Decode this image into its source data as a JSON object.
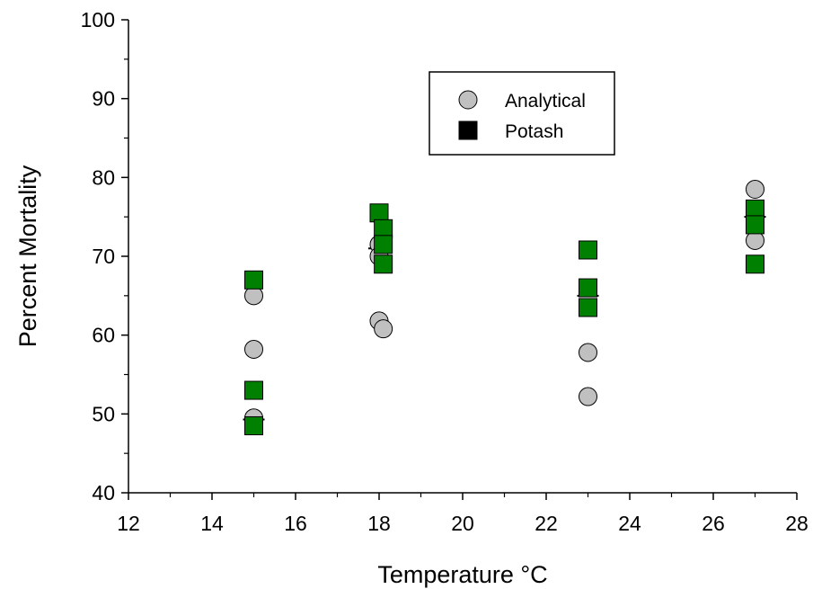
{
  "chart_data": {
    "type": "scatter",
    "title": "",
    "xlabel": "Temperature °C",
    "ylabel": "Percent Mortality",
    "xlim": [
      12,
      28
    ],
    "ylim": [
      40,
      100
    ],
    "xticks": [
      12,
      14,
      16,
      18,
      20,
      22,
      24,
      26,
      28
    ],
    "yticks": [
      40,
      50,
      60,
      70,
      80,
      90,
      100
    ],
    "grid": false,
    "legend_position": "top-right",
    "series": [
      {
        "name": "Analytical",
        "marker": "circle",
        "color": "#c0c0c0",
        "points": [
          {
            "x": 15,
            "y": 65
          },
          {
            "x": 15,
            "y": 58.2
          },
          {
            "x": 15,
            "y": 49.5
          },
          {
            "x": 18,
            "y": 71.5
          },
          {
            "x": 18,
            "y": 70
          },
          {
            "x": 18,
            "y": 61.8
          },
          {
            "x": 18.1,
            "y": 60.8
          },
          {
            "x": 23,
            "y": 57.8
          },
          {
            "x": 23,
            "y": 52.2
          },
          {
            "x": 27,
            "y": 78.5
          },
          {
            "x": 27,
            "y": 72
          }
        ]
      },
      {
        "name": "Potash",
        "marker": "square",
        "color": "#008000",
        "points": [
          {
            "x": 15,
            "y": 67
          },
          {
            "x": 15,
            "y": 53
          },
          {
            "x": 15,
            "y": 48.5
          },
          {
            "x": 18,
            "y": 75.5
          },
          {
            "x": 18.1,
            "y": 73.5
          },
          {
            "x": 18.1,
            "y": 71.5
          },
          {
            "x": 18.1,
            "y": 69
          },
          {
            "x": 23,
            "y": 70.8
          },
          {
            "x": 23,
            "y": 66
          },
          {
            "x": 23,
            "y": 63.5
          },
          {
            "x": 27,
            "y": 76
          },
          {
            "x": 27,
            "y": 74
          },
          {
            "x": 27,
            "y": 69
          }
        ]
      }
    ],
    "mean_markers": [
      {
        "x": 15,
        "y": 49.3
      },
      {
        "x": 18,
        "y": 71
      },
      {
        "x": 23,
        "y": 65
      },
      {
        "x": 27,
        "y": 75
      }
    ],
    "legend_markers": [
      {
        "name": "Analytical",
        "marker": "circle",
        "color": "#c0c0c0"
      },
      {
        "name": "Potash",
        "marker": "square",
        "color": "#000000"
      }
    ]
  }
}
